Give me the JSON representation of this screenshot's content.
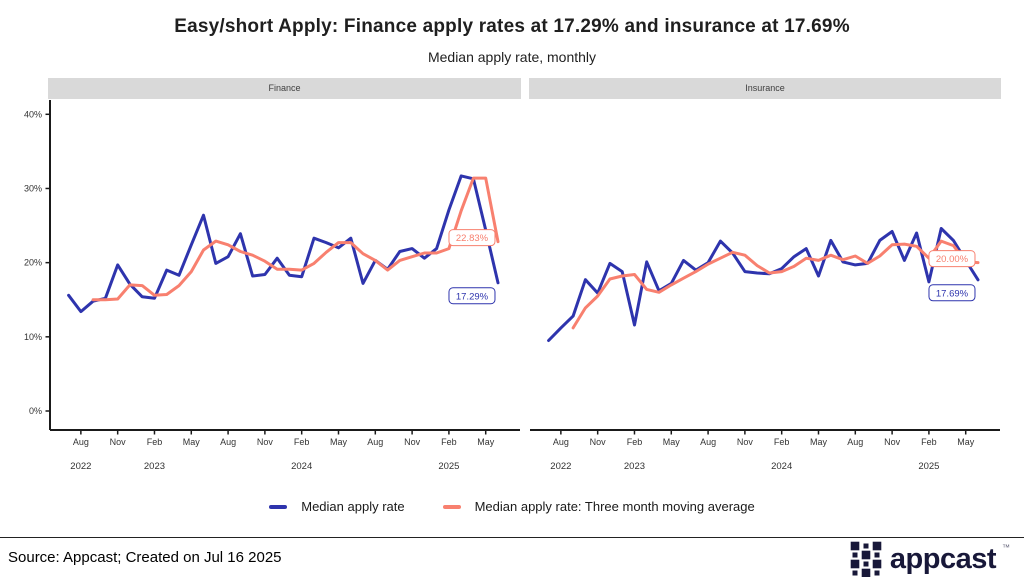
{
  "title": "Easy/short Apply: Finance apply rates at 17.29% and insurance at 17.69%",
  "subtitle": "Median apply rate, monthly",
  "colors": {
    "median": "#2e34ad",
    "moving_avg": "#f8806f",
    "panel_strip": "#d9d9d9",
    "axis": "#1a1a1a",
    "tick_text": "#333333",
    "logo_navy": "#181839"
  },
  "legend": {
    "items": [
      {
        "label": "Median apply rate",
        "color": "#2e34ad"
      },
      {
        "label": "Median apply rate: Three month moving average",
        "color": "#f8806f"
      }
    ]
  },
  "footer": {
    "source": "Source: Appcast; Created on Jul 16 2025",
    "logo_text": "appcast",
    "logo_tm": "™"
  },
  "chart_data": [
    {
      "type": "line",
      "panel": "Finance",
      "x": [
        "Jul 2022",
        "Aug 2022",
        "Sep 2022",
        "Oct 2022",
        "Nov 2022",
        "Dec 2022",
        "Jan 2023",
        "Feb 2023",
        "Mar 2023",
        "Apr 2023",
        "May 2023",
        "Jun 2023",
        "Jul 2023",
        "Aug 2023",
        "Sep 2023",
        "Oct 2023",
        "Nov 2023",
        "Dec 2023",
        "Jan 2024",
        "Feb 2024",
        "Mar 2024",
        "Apr 2024",
        "May 2024",
        "Jun 2024",
        "Jul 2024",
        "Aug 2024",
        "Sep 2024",
        "Oct 2024",
        "Nov 2024",
        "Dec 2024",
        "Jan 2025",
        "Feb 2025",
        "Mar 2025",
        "Apr 2025",
        "May 2025",
        "Jun 2025"
      ],
      "series": [
        {
          "name": "Median apply rate",
          "color": "#2e34ad",
          "values": [
            15.6,
            13.4,
            14.8,
            15.2,
            19.7,
            17.1,
            15.4,
            15.2,
            19.0,
            18.3,
            22.4,
            26.4,
            19.9,
            20.8,
            23.9,
            18.2,
            18.4,
            20.6,
            18.3,
            18.1,
            23.3,
            22.7,
            22.0,
            23.3,
            17.2,
            20.3,
            19.1,
            21.5,
            21.9,
            20.6,
            21.9,
            27.1,
            31.7,
            31.3,
            24.4,
            17.29
          ]
        },
        {
          "name": "Median apply rate: Three month moving average",
          "color": "#f8806f",
          "values": [
            null,
            null,
            15.0,
            15.0,
            15.1,
            17.0,
            16.9,
            15.6,
            15.7,
            16.9,
            18.8,
            21.7,
            22.9,
            22.4,
            21.5,
            21.0,
            20.2,
            19.1,
            19.1,
            19.0,
            19.9,
            21.4,
            22.7,
            22.7,
            21.2,
            20.3,
            19.0,
            20.3,
            20.8,
            21.3,
            21.3,
            21.9,
            27.0,
            31.4,
            31.4,
            22.83
          ]
        }
      ],
      "ylim": [
        0,
        42
      ],
      "yticks": [
        {
          "value": 0,
          "label": "0%"
        },
        {
          "value": 10,
          "label": "10%"
        },
        {
          "value": 20,
          "label": "20%"
        },
        {
          "value": 30,
          "label": "30%"
        },
        {
          "value": 40,
          "label": "40%"
        }
      ],
      "month_ticks": [
        {
          "index": 1,
          "label": "Aug"
        },
        {
          "index": 4,
          "label": "Nov"
        },
        {
          "index": 7,
          "label": "Feb"
        },
        {
          "index": 10,
          "label": "May"
        },
        {
          "index": 13,
          "label": "Aug"
        },
        {
          "index": 16,
          "label": "Nov"
        },
        {
          "index": 19,
          "label": "Feb"
        },
        {
          "index": 22,
          "label": "May"
        },
        {
          "index": 25,
          "label": "Aug"
        },
        {
          "index": 28,
          "label": "Nov"
        },
        {
          "index": 31,
          "label": "Feb"
        },
        {
          "index": 34,
          "label": "May"
        }
      ],
      "year_ticks": [
        {
          "index": 1,
          "label": "2022"
        },
        {
          "index": 7,
          "label": "2023"
        },
        {
          "index": 19,
          "label": "2024"
        },
        {
          "index": 31,
          "label": "2025"
        }
      ],
      "grid": false,
      "legend_position": "bottom",
      "annotations": [
        {
          "text": "22.83%",
          "series": 1,
          "value": 22.83,
          "color": "#f8806f"
        },
        {
          "text": "17.29%",
          "series": 0,
          "value": 17.29,
          "color": "#2e34ad"
        }
      ]
    },
    {
      "type": "line",
      "panel": "Insurance",
      "x": [
        "Jul 2022",
        "Aug 2022",
        "Sep 2022",
        "Oct 2022",
        "Nov 2022",
        "Dec 2022",
        "Jan 2023",
        "Feb 2023",
        "Mar 2023",
        "Apr 2023",
        "May 2023",
        "Jun 2023",
        "Jul 2023",
        "Aug 2023",
        "Sep 2023",
        "Oct 2023",
        "Nov 2023",
        "Dec 2023",
        "Jan 2024",
        "Feb 2024",
        "Mar 2024",
        "Apr 2024",
        "May 2024",
        "Jun 2024",
        "Jul 2024",
        "Aug 2024",
        "Sep 2024",
        "Oct 2024",
        "Nov 2024",
        "Dec 2024",
        "Jan 2025",
        "Feb 2025",
        "Mar 2025",
        "Apr 2025",
        "May 2025",
        "Jun 2025"
      ],
      "series": [
        {
          "name": "Median apply rate",
          "color": "#2e34ad",
          "values": [
            9.5,
            11.2,
            12.8,
            17.7,
            15.9,
            19.9,
            18.8,
            11.6,
            20.1,
            16.2,
            17.2,
            20.3,
            19.0,
            20.0,
            22.9,
            21.3,
            18.8,
            18.6,
            18.5,
            19.2,
            20.8,
            21.9,
            18.2,
            23.0,
            20.1,
            19.7,
            19.9,
            23.0,
            24.2,
            20.3,
            24.0,
            17.4,
            24.6,
            23.0,
            20.3,
            17.69
          ]
        },
        {
          "name": "Median apply rate: Three month moving average",
          "color": "#f8806f",
          "values": [
            null,
            null,
            11.2,
            13.9,
            15.5,
            17.8,
            18.2,
            18.4,
            16.4,
            16.0,
            17.0,
            17.9,
            18.8,
            19.8,
            20.6,
            21.4,
            21.0,
            19.6,
            18.6,
            18.8,
            19.5,
            20.6,
            20.3,
            21.0,
            20.4,
            20.9,
            19.9,
            20.9,
            22.4,
            22.5,
            22.2,
            20.6,
            22.9,
            22.3,
            20.1,
            20.0
          ]
        }
      ],
      "ylim": [
        0,
        42
      ],
      "yticks": [
        {
          "value": 0,
          "label": "0%"
        },
        {
          "value": 10,
          "label": "10%"
        },
        {
          "value": 20,
          "label": "20%"
        },
        {
          "value": 30,
          "label": "30%"
        },
        {
          "value": 40,
          "label": "40%"
        }
      ],
      "month_ticks": [
        {
          "index": 1,
          "label": "Aug"
        },
        {
          "index": 4,
          "label": "Nov"
        },
        {
          "index": 7,
          "label": "Feb"
        },
        {
          "index": 10,
          "label": "May"
        },
        {
          "index": 13,
          "label": "Aug"
        },
        {
          "index": 16,
          "label": "Nov"
        },
        {
          "index": 19,
          "label": "Feb"
        },
        {
          "index": 22,
          "label": "May"
        },
        {
          "index": 25,
          "label": "Aug"
        },
        {
          "index": 28,
          "label": "Nov"
        },
        {
          "index": 31,
          "label": "Feb"
        },
        {
          "index": 34,
          "label": "May"
        }
      ],
      "year_ticks": [
        {
          "index": 1,
          "label": "2022"
        },
        {
          "index": 7,
          "label": "2023"
        },
        {
          "index": 19,
          "label": "2024"
        },
        {
          "index": 31,
          "label": "2025"
        }
      ],
      "grid": false,
      "legend_position": "bottom",
      "annotations": [
        {
          "text": "20.00%",
          "series": 1,
          "value": 20.0,
          "color": "#f8806f"
        },
        {
          "text": "17.69%",
          "series": 0,
          "value": 17.69,
          "color": "#2e34ad"
        }
      ]
    }
  ]
}
